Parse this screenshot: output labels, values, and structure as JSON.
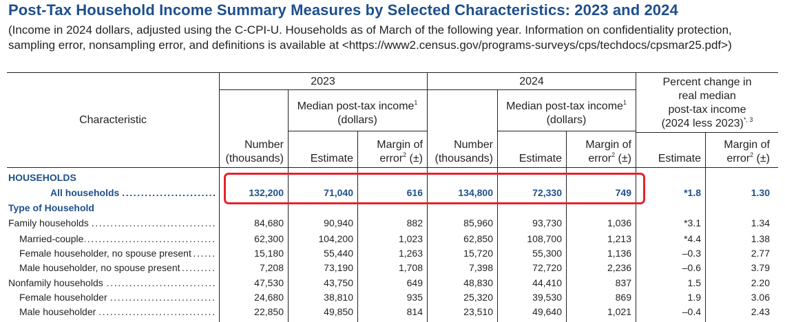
{
  "title": "Post-Tax Household Income Summary Measures by Selected Characteristics: 2023 and 2024",
  "subtitle": "(Income in 2024 dollars, adjusted using the C-CPI-U. Households as of March of the following year. Information on confidentiality protection, sampling error, nonsampling error, and definitions is available at <https://www2.census.gov/programs-surveys/cps/techdocs/cpsmar25.pdf>)",
  "header": {
    "characteristic": "Characteristic",
    "year_2023": "2023",
    "year_2024": "2024",
    "median_line1": "Median post-tax income",
    "median_sup": "1",
    "median_line2": "(dollars)",
    "pct_line1": "Percent change in",
    "pct_line2": "real median",
    "pct_line3": "post-tax income",
    "pct_line4": "(2024 less 2023)",
    "pct_sup": "*, 3",
    "number_line1": "Number",
    "number_line2": "(thousands)",
    "estimate": "Estimate",
    "moe_line1": "Margin of",
    "moe_line2a": "error",
    "moe_sup": "2",
    "moe_line2b": " (±)"
  },
  "rows": [
    {
      "label": "HOUSEHOLDS",
      "kind": "section"
    },
    {
      "label": "All households",
      "kind": "total",
      "values": [
        "132,200",
        "71,040",
        "616",
        "134,800",
        "72,330",
        "749",
        "*1.8",
        "1.30"
      ]
    },
    {
      "label": "Type of Household",
      "kind": "section"
    },
    {
      "label": "Family households",
      "kind": "data",
      "values": [
        "84,680",
        "90,940",
        "882",
        "85,960",
        "93,730",
        "1,036",
        "*3.1",
        "1.34"
      ]
    },
    {
      "label": "Married-couple",
      "kind": "data-indent",
      "values": [
        "62,300",
        "104,200",
        "1,023",
        "62,850",
        "108,700",
        "1,213",
        "*4.4",
        "1.38"
      ]
    },
    {
      "label": "Female householder, no spouse present",
      "kind": "data-indent",
      "values": [
        "15,180",
        "55,440",
        "1,263",
        "15,720",
        "55,300",
        "1,136",
        "–0.3",
        "2.77"
      ]
    },
    {
      "label": "Male householder, no spouse present",
      "kind": "data-indent",
      "values": [
        "7,208",
        "73,190",
        "1,708",
        "7,398",
        "72,720",
        "2,236",
        "–0.6",
        "3.79"
      ]
    },
    {
      "label": "Nonfamily households",
      "kind": "data",
      "values": [
        "47,530",
        "43,750",
        "649",
        "48,830",
        "44,410",
        "837",
        "1.5",
        "2.20"
      ]
    },
    {
      "label": "Female householder",
      "kind": "data-indent",
      "values": [
        "24,680",
        "38,810",
        "935",
        "25,320",
        "39,530",
        "869",
        "1.9",
        "3.06"
      ]
    },
    {
      "label": "Male householder",
      "kind": "data-indent",
      "values": [
        "22,850",
        "49,850",
        "814",
        "23,510",
        "49,640",
        "1,021",
        "–0.4",
        "2.43"
      ]
    }
  ]
}
